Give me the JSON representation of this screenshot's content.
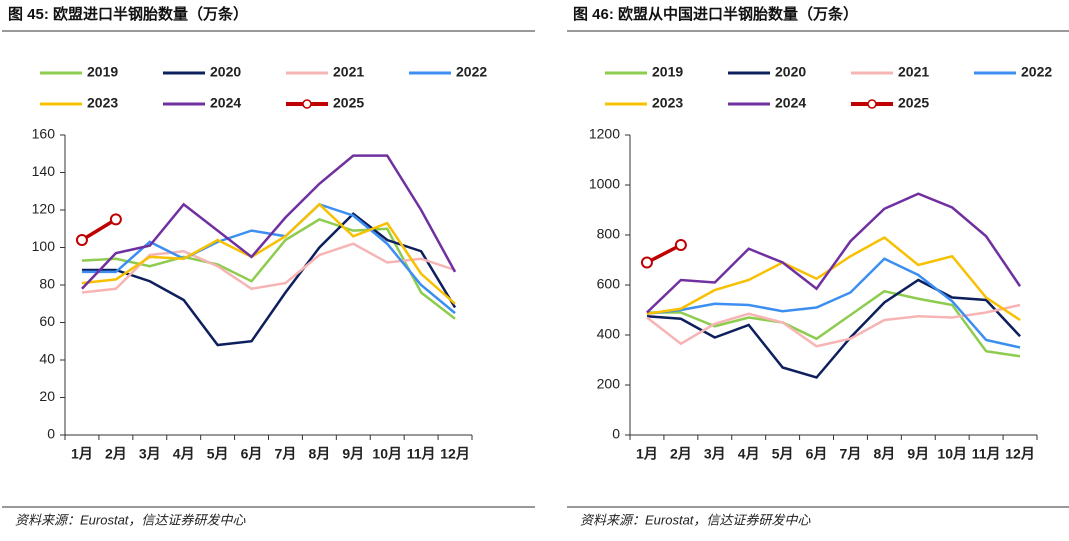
{
  "chart_data": [
    {
      "type": "line",
      "title": "图 45:  欧盟进口半钢胎数量（万条）",
      "source": "资料来源：Eurostat，信达证券研发中心",
      "categories": [
        "1月",
        "2月",
        "3月",
        "4月",
        "5月",
        "6月",
        "7月",
        "8月",
        "9月",
        "10月",
        "11月",
        "12月"
      ],
      "ylim": [
        0,
        160
      ],
      "yticks": [
        0,
        20,
        40,
        60,
        80,
        100,
        120,
        140,
        160
      ],
      "grid": false,
      "series": [
        {
          "name": "2019",
          "color": "#8dcc4e",
          "values": [
            93,
            94,
            90,
            95,
            91,
            82,
            104,
            115,
            109,
            110,
            76,
            62
          ]
        },
        {
          "name": "2020",
          "color": "#0d1f5c",
          "values": [
            88,
            88,
            82,
            72,
            48,
            50,
            76,
            100,
            118,
            104,
            98,
            68
          ]
        },
        {
          "name": "2021",
          "color": "#f7b4b4",
          "values": [
            76,
            78,
            96,
            98,
            90,
            78,
            81,
            96,
            102,
            92,
            94,
            88
          ]
        },
        {
          "name": "2022",
          "color": "#3c8ff0",
          "values": [
            87,
            87,
            103,
            94,
            103,
            109,
            106,
            123,
            117,
            102,
            80,
            65
          ]
        },
        {
          "name": "2023",
          "color": "#f7c000",
          "values": [
            81,
            83,
            95,
            94,
            104,
            95,
            106,
            123,
            106,
            113,
            86,
            70
          ]
        },
        {
          "name": "2024",
          "color": "#7030a0",
          "values": [
            78,
            97,
            101,
            123,
            109,
            95,
            116,
            134,
            149,
            149,
            120,
            87
          ]
        },
        {
          "name": "2025",
          "color": "#c00000",
          "markers": true,
          "values": [
            104,
            115,
            null,
            null,
            null,
            null,
            null,
            null,
            null,
            null,
            null,
            null
          ]
        }
      ]
    },
    {
      "type": "line",
      "title": "图 46:  欧盟从中国进口半钢胎数量（万条）",
      "source": "资料来源：Eurostat，信达证券研发中心",
      "categories": [
        "1月",
        "2月",
        "3月",
        "4月",
        "5月",
        "6月",
        "7月",
        "8月",
        "9月",
        "10月",
        "11月",
        "12月"
      ],
      "ylim": [
        0,
        1200
      ],
      "yticks": [
        0,
        200,
        400,
        600,
        800,
        1000,
        1200
      ],
      "grid": false,
      "series": [
        {
          "name": "2019",
          "color": "#8dcc4e",
          "values": [
            490,
            490,
            435,
            470,
            450,
            385,
            480,
            575,
            545,
            520,
            335,
            315
          ]
        },
        {
          "name": "2020",
          "color": "#0d1f5c",
          "values": [
            475,
            465,
            390,
            440,
            270,
            230,
            390,
            530,
            620,
            550,
            540,
            395
          ]
        },
        {
          "name": "2021",
          "color": "#f7b4b4",
          "values": [
            470,
            365,
            445,
            485,
            450,
            355,
            385,
            460,
            475,
            470,
            490,
            520
          ]
        },
        {
          "name": "2022",
          "color": "#3c8ff0",
          "values": [
            485,
            500,
            525,
            520,
            495,
            510,
            570,
            705,
            640,
            535,
            380,
            350
          ]
        },
        {
          "name": "2023",
          "color": "#f7c000",
          "values": [
            485,
            505,
            580,
            620,
            690,
            625,
            715,
            790,
            680,
            715,
            550,
            460
          ]
        },
        {
          "name": "2024",
          "color": "#7030a0",
          "values": [
            490,
            620,
            610,
            745,
            690,
            585,
            775,
            905,
            965,
            910,
            795,
            595
          ]
        },
        {
          "name": "2025",
          "color": "#c00000",
          "markers": true,
          "values": [
            690,
            760,
            null,
            null,
            null,
            null,
            null,
            null,
            null,
            null,
            null,
            null
          ]
        }
      ]
    }
  ]
}
